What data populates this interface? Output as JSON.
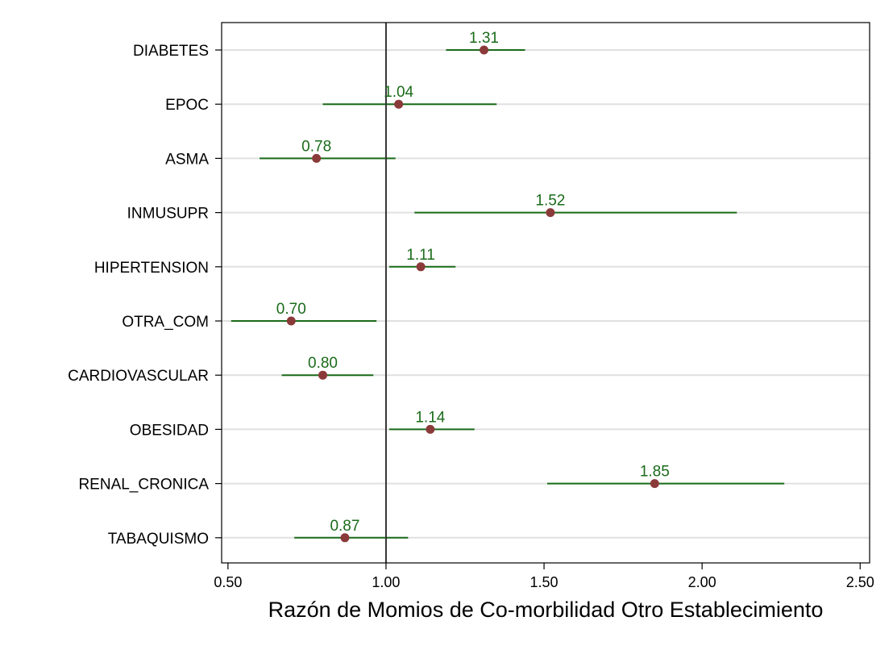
{
  "chart_data": {
    "type": "scatter",
    "title": "",
    "xlabel": "Razón de Momios de Co-morbilidad Otro Establecimiento",
    "ylabel": "",
    "xlim": [
      0.48,
      2.53
    ],
    "xticks": [
      0.5,
      1.0,
      1.5,
      2.0,
      2.5
    ],
    "xtick_labels": [
      "0.50",
      "1.00",
      "1.50",
      "2.00",
      "2.50"
    ],
    "reference_line": 1.0,
    "grid": "horizontal",
    "colors": {
      "point": "#8b3a3a",
      "ci_line": "#1a6b1a",
      "value_label": "#1a6b1a",
      "grid": "#e0e0e0",
      "reference": "#333333"
    },
    "categories": [
      "DIABETES",
      "EPOC",
      "ASMA",
      "INMUSUPR",
      "HIPERTENSION",
      "OTRA_COM",
      "CARDIOVASCULAR",
      "OBESIDAD",
      "RENAL_CRONICA",
      "TABAQUISMO"
    ],
    "estimates": [
      1.31,
      1.04,
      0.78,
      1.52,
      1.11,
      0.7,
      0.8,
      1.14,
      1.85,
      0.87
    ],
    "value_labels": [
      "1.31",
      "1.04",
      "0.78",
      "1.52",
      "1.11",
      "0.70",
      "0.80",
      "1.14",
      "1.85",
      "0.87"
    ],
    "ci_lower": [
      1.19,
      0.8,
      0.6,
      1.09,
      1.01,
      0.51,
      0.67,
      1.01,
      1.51,
      0.71
    ],
    "ci_upper": [
      1.44,
      1.35,
      1.03,
      2.11,
      1.22,
      0.97,
      0.96,
      1.28,
      2.26,
      1.07
    ]
  }
}
